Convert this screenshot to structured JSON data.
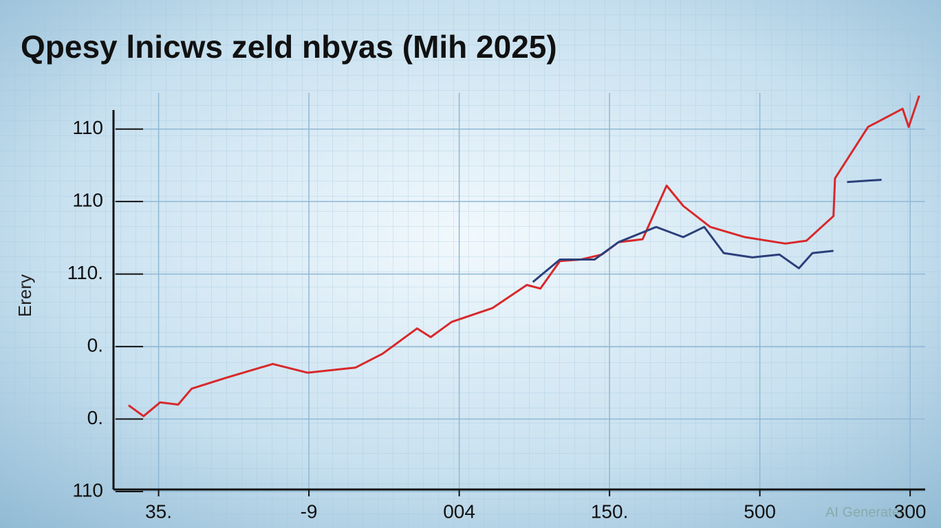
{
  "chart_data": {
    "type": "line",
    "title": "Qpesy lnicws zeld nbyas (Mih 2025)",
    "y_label": "Erery",
    "watermark": "AI Generated",
    "xlim": [
      -0.3,
      5.1
    ],
    "xticks": [
      {
        "value": 0,
        "label": "35."
      },
      {
        "value": 1,
        "label": "-9"
      },
      {
        "value": 2,
        "label": "004"
      },
      {
        "value": 3,
        "label": "150."
      },
      {
        "value": 4,
        "label": "500"
      },
      {
        "value": 5,
        "label": "300"
      }
    ],
    "ylim": [
      0,
      5.5
    ],
    "yticks": [
      {
        "value": 0,
        "label": "110"
      },
      {
        "value": 1,
        "label": "0."
      },
      {
        "value": 2,
        "label": "0."
      },
      {
        "value": 3,
        "label": "110."
      },
      {
        "value": 4,
        "label": "110"
      },
      {
        "value": 5,
        "label": "110"
      }
    ],
    "grid": true,
    "series": [
      {
        "name": null,
        "color": "#d8282a",
        "x": [
          -0.2,
          -0.1,
          0.01,
          0.13,
          0.22,
          0.45,
          0.76,
          0.99,
          1.31,
          1.49,
          1.72,
          1.81,
          1.95,
          2.22,
          2.45,
          2.54,
          2.67,
          2.81,
          2.95,
          3.06,
          3.22,
          3.38,
          3.49,
          3.67,
          3.9,
          4.17,
          4.31,
          4.49,
          4.5,
          4.72,
          4.95,
          4.99,
          5.06
        ],
        "values": [
          1.19,
          1.04,
          1.23,
          1.2,
          1.42,
          1.57,
          1.76,
          1.64,
          1.71,
          1.9,
          2.25,
          2.13,
          2.34,
          2.53,
          2.85,
          2.8,
          3.18,
          3.2,
          3.27,
          3.44,
          3.48,
          4.22,
          3.94,
          3.65,
          3.51,
          3.42,
          3.46,
          3.8,
          4.32,
          5.03,
          5.28,
          5.03,
          5.46
        ]
      },
      {
        "name": null,
        "color": "#2c3f7a",
        "x": [
          2.49,
          2.67,
          2.9,
          3.06,
          3.31,
          3.49,
          3.63,
          3.76,
          3.95,
          4.13,
          4.26,
          4.35,
          4.49,
          null,
          4.58,
          4.81
        ],
        "values": [
          2.89,
          3.2,
          3.2,
          3.44,
          3.65,
          3.51,
          3.65,
          3.29,
          3.23,
          3.27,
          3.08,
          3.29,
          3.32,
          null,
          4.27,
          4.3
        ]
      }
    ]
  }
}
